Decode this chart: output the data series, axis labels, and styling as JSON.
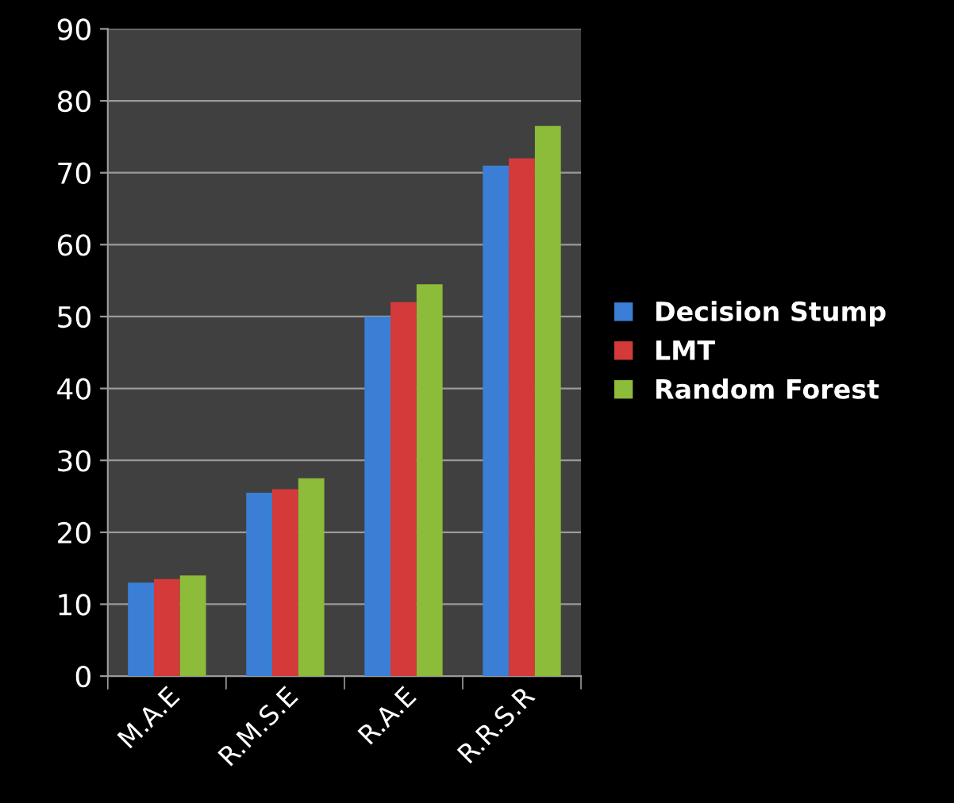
{
  "chart_data": {
    "type": "bar",
    "categories": [
      "M.A.E",
      "R.M.S.E",
      "R.A.E",
      "R.R.S.R"
    ],
    "series": [
      {
        "name": "Decision Stump",
        "color": "#3a7fd5",
        "values": [
          13,
          25.5,
          50,
          71
        ]
      },
      {
        "name": "LMT",
        "color": "#d43a3a",
        "values": [
          13.5,
          26,
          52,
          72
        ]
      },
      {
        "name": "Random Forest",
        "color": "#8dbb3a",
        "values": [
          14,
          27.5,
          54.5,
          76.5
        ]
      }
    ],
    "ylim": [
      0,
      90
    ],
    "yticks": [
      0,
      10,
      20,
      30,
      40,
      50,
      60,
      70,
      80,
      90
    ],
    "grid": "y",
    "legend": "right"
  }
}
